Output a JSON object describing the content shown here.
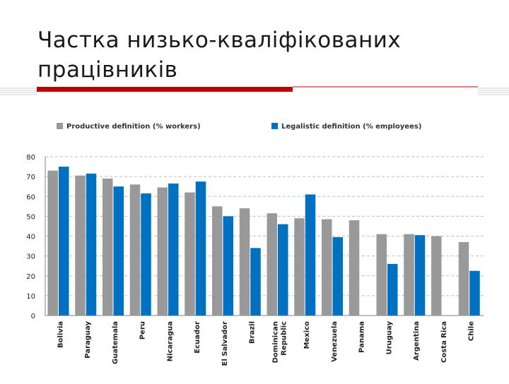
{
  "slide": {
    "title": "Частка низько-кваліфікованих працівників"
  },
  "colors": {
    "accent_red": "#c00000",
    "series_productive": "#999999",
    "series_legalistic": "#0070c0",
    "grid": "#bfbfbf"
  },
  "chart_data": {
    "type": "bar",
    "title": "",
    "xlabel": "",
    "ylabel": "",
    "ylim": [
      0,
      80
    ],
    "yticks": [
      "0",
      "10",
      "20",
      "30",
      "40",
      "50",
      "60",
      "70",
      "80"
    ],
    "grid": true,
    "legend_position": "top",
    "categories": [
      "Bolivia",
      "Paraguay",
      "Guatemala",
      "Peru",
      "Nicaragua",
      "Ecuador",
      "El Salvador",
      "Brazil",
      "Dominican Republic",
      "Mexico",
      "Venezuela",
      "Panama",
      "Uruguay",
      "Argentina",
      "Costa Rica",
      "Chile"
    ],
    "category_lines": [
      [
        "Bolivia"
      ],
      [
        "Paraguay"
      ],
      [
        "Guatemala"
      ],
      [
        "Peru"
      ],
      [
        "Nicaragua"
      ],
      [
        "Ecuador"
      ],
      [
        "El Salvador"
      ],
      [
        "Brazil"
      ],
      [
        "Dominican",
        "Republic"
      ],
      [
        "Mexico"
      ],
      [
        "Venezuela"
      ],
      [
        "Panama"
      ],
      [
        "Uruguay"
      ],
      [
        "Argentina"
      ],
      [
        "Costa Rica"
      ],
      [
        "Chile"
      ]
    ],
    "series": [
      {
        "name": "Productive definition (% workers)",
        "color": "#999999",
        "values": [
          73,
          70.5,
          69,
          66,
          64.5,
          62,
          55,
          54,
          51.5,
          49,
          48.5,
          48,
          41,
          41,
          40,
          37
        ]
      },
      {
        "name": "Legalistic definition (% employees)",
        "color": "#0070c0",
        "values": [
          75,
          71.5,
          65,
          61.5,
          66.5,
          67.5,
          50,
          34,
          46,
          61,
          39.5,
          null,
          26,
          40.5,
          null,
          22.5
        ]
      }
    ]
  }
}
